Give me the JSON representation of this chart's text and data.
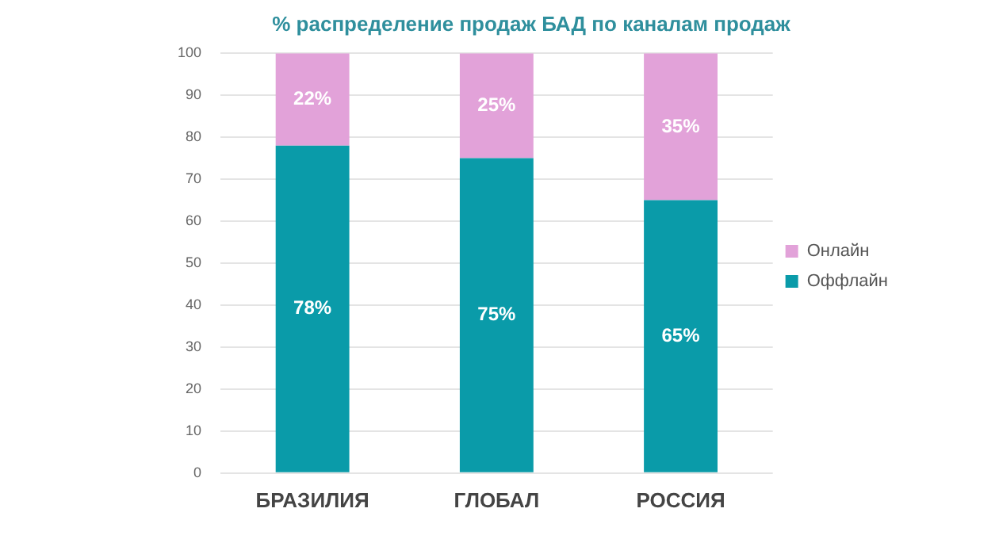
{
  "chart_data": {
    "type": "bar",
    "title": "% распределение продаж БАД по каналам продаж",
    "categories": [
      "БРАЗИЛИЯ",
      "ГЛОБАЛ",
      "РОССИЯ"
    ],
    "stacked": true,
    "series": [
      {
        "name": "Оффлайн",
        "color": "#0a9ba9",
        "values": [
          78,
          75,
          65
        ],
        "value_labels": [
          "78%",
          "75%",
          "65%"
        ]
      },
      {
        "name": "Онлайн",
        "color": "#e2a2d9",
        "values": [
          22,
          25,
          35
        ],
        "value_labels": [
          "22%",
          "25%",
          "35%"
        ]
      }
    ],
    "ylim": [
      0,
      100
    ],
    "yticks": [
      0,
      10,
      20,
      30,
      40,
      50,
      60,
      70,
      80,
      90,
      100
    ],
    "grid": "y",
    "legend": "right"
  }
}
